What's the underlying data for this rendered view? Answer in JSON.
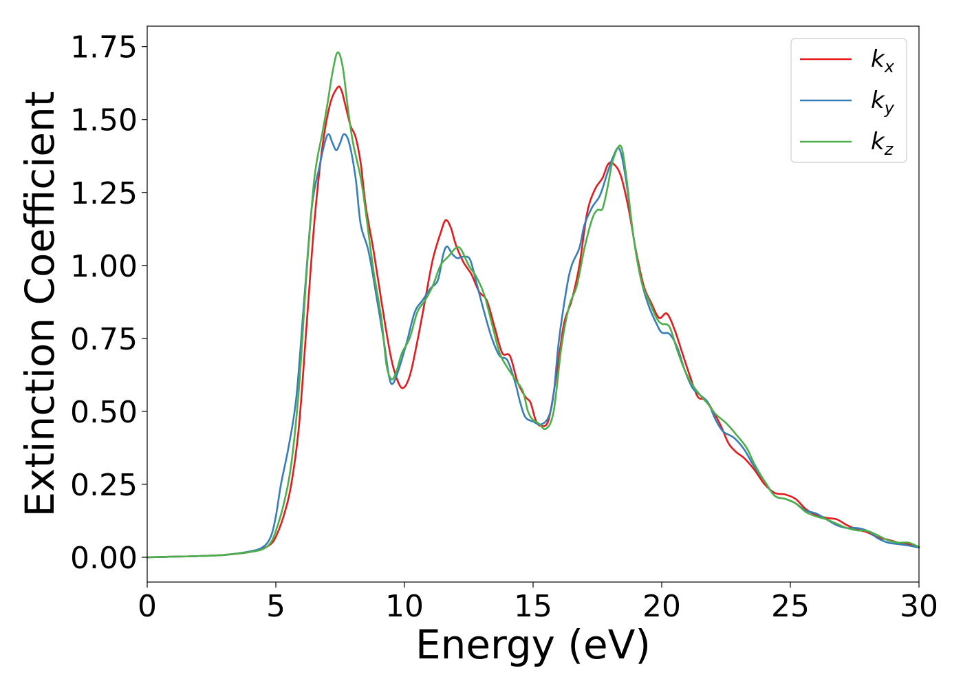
{
  "chart_data": {
    "type": "line",
    "title": "",
    "xlabel": "Energy (eV)",
    "ylabel": "Extinction Coefficient",
    "xlim": [
      0,
      30
    ],
    "ylim": [
      -0.085,
      1.82
    ],
    "xticks": [
      0,
      5,
      10,
      15,
      20,
      25,
      30
    ],
    "xtick_labels": [
      "0",
      "5",
      "10",
      "15",
      "20",
      "25",
      "30"
    ],
    "yticks": [
      0,
      0.25,
      0.5,
      0.75,
      1.0,
      1.25,
      1.5,
      1.75
    ],
    "ytick_labels": [
      "0.00",
      "0.25",
      "0.50",
      "0.75",
      "1.00",
      "1.25",
      "1.50",
      "1.75"
    ],
    "grid": false,
    "legend_position": "top-right",
    "series": [
      {
        "name": "k",
        "subscript": "x",
        "color": "#e41a1c",
        "points": [
          [
            0,
            0.0
          ],
          [
            1,
            0.002
          ],
          [
            2,
            0.004
          ],
          [
            3,
            0.008
          ],
          [
            4,
            0.018
          ],
          [
            4.5,
            0.03
          ],
          [
            4.8,
            0.045
          ],
          [
            5.0,
            0.07
          ],
          [
            5.3,
            0.14
          ],
          [
            5.6,
            0.25
          ],
          [
            5.9,
            0.45
          ],
          [
            6.2,
            0.8
          ],
          [
            6.5,
            1.15
          ],
          [
            6.8,
            1.4
          ],
          [
            7.1,
            1.55
          ],
          [
            7.4,
            1.61
          ],
          [
            7.55,
            1.6
          ],
          [
            7.7,
            1.55
          ],
          [
            7.9,
            1.48
          ],
          [
            8.1,
            1.44
          ],
          [
            8.3,
            1.35
          ],
          [
            8.5,
            1.2
          ],
          [
            8.8,
            1.05
          ],
          [
            9.1,
            0.88
          ],
          [
            9.4,
            0.72
          ],
          [
            9.6,
            0.64
          ],
          [
            9.9,
            0.58
          ],
          [
            10.2,
            0.62
          ],
          [
            10.5,
            0.74
          ],
          [
            10.8,
            0.88
          ],
          [
            11.1,
            1.02
          ],
          [
            11.4,
            1.11
          ],
          [
            11.6,
            1.155
          ],
          [
            11.8,
            1.13
          ],
          [
            12.0,
            1.07
          ],
          [
            12.3,
            1.01
          ],
          [
            12.6,
            0.97
          ],
          [
            12.9,
            0.91
          ],
          [
            13.2,
            0.88
          ],
          [
            13.5,
            0.79
          ],
          [
            13.8,
            0.7
          ],
          [
            14.1,
            0.69
          ],
          [
            14.4,
            0.6
          ],
          [
            14.7,
            0.55
          ],
          [
            14.9,
            0.53
          ],
          [
            15.1,
            0.47
          ],
          [
            15.3,
            0.45
          ],
          [
            15.6,
            0.47
          ],
          [
            15.9,
            0.62
          ],
          [
            16.2,
            0.8
          ],
          [
            16.5,
            0.88
          ],
          [
            16.8,
            1.0
          ],
          [
            17.1,
            1.18
          ],
          [
            17.4,
            1.26
          ],
          [
            17.7,
            1.3
          ],
          [
            17.9,
            1.345
          ],
          [
            18.1,
            1.35
          ],
          [
            18.4,
            1.31
          ],
          [
            18.7,
            1.2
          ],
          [
            19.0,
            1.05
          ],
          [
            19.3,
            0.93
          ],
          [
            19.6,
            0.87
          ],
          [
            19.9,
            0.82
          ],
          [
            20.2,
            0.835
          ],
          [
            20.5,
            0.78
          ],
          [
            20.8,
            0.7
          ],
          [
            21.1,
            0.62
          ],
          [
            21.4,
            0.55
          ],
          [
            21.7,
            0.54
          ],
          [
            22.0,
            0.5
          ],
          [
            22.3,
            0.45
          ],
          [
            22.6,
            0.39
          ],
          [
            22.9,
            0.36
          ],
          [
            23.2,
            0.34
          ],
          [
            23.6,
            0.3
          ],
          [
            24.0,
            0.25
          ],
          [
            24.4,
            0.22
          ],
          [
            24.8,
            0.215
          ],
          [
            25.2,
            0.2
          ],
          [
            25.6,
            0.165
          ],
          [
            26.0,
            0.145
          ],
          [
            26.4,
            0.135
          ],
          [
            26.8,
            0.13
          ],
          [
            27.2,
            0.11
          ],
          [
            27.6,
            0.095
          ],
          [
            28.0,
            0.085
          ],
          [
            28.4,
            0.068
          ],
          [
            28.8,
            0.06
          ],
          [
            29.2,
            0.05
          ],
          [
            29.6,
            0.045
          ],
          [
            30,
            0.035
          ]
        ]
      },
      {
        "name": "k",
        "subscript": "y",
        "color": "#377eb8",
        "points": [
          [
            0,
            0.0
          ],
          [
            1,
            0.002
          ],
          [
            2,
            0.004
          ],
          [
            3,
            0.008
          ],
          [
            4,
            0.02
          ],
          [
            4.5,
            0.035
          ],
          [
            4.8,
            0.07
          ],
          [
            5.0,
            0.14
          ],
          [
            5.2,
            0.25
          ],
          [
            5.5,
            0.38
          ],
          [
            5.8,
            0.55
          ],
          [
            6.1,
            0.88
          ],
          [
            6.4,
            1.2
          ],
          [
            6.7,
            1.34
          ],
          [
            6.9,
            1.42
          ],
          [
            7.05,
            1.45
          ],
          [
            7.2,
            1.42
          ],
          [
            7.35,
            1.395
          ],
          [
            7.5,
            1.42
          ],
          [
            7.65,
            1.45
          ],
          [
            7.85,
            1.42
          ],
          [
            8.1,
            1.3
          ],
          [
            8.3,
            1.14
          ],
          [
            8.6,
            1.05
          ],
          [
            8.9,
            0.9
          ],
          [
            9.2,
            0.74
          ],
          [
            9.4,
            0.62
          ],
          [
            9.55,
            0.595
          ],
          [
            9.8,
            0.65
          ],
          [
            10.1,
            0.74
          ],
          [
            10.4,
            0.84
          ],
          [
            10.7,
            0.88
          ],
          [
            11.0,
            0.92
          ],
          [
            11.3,
            0.95
          ],
          [
            11.5,
            1.035
          ],
          [
            11.65,
            1.065
          ],
          [
            11.85,
            1.04
          ],
          [
            12.05,
            1.025
          ],
          [
            12.3,
            1.03
          ],
          [
            12.55,
            1.02
          ],
          [
            12.8,
            0.94
          ],
          [
            13.1,
            0.84
          ],
          [
            13.4,
            0.75
          ],
          [
            13.7,
            0.69
          ],
          [
            14.0,
            0.675
          ],
          [
            14.3,
            0.6
          ],
          [
            14.5,
            0.53
          ],
          [
            14.7,
            0.48
          ],
          [
            15.0,
            0.465
          ],
          [
            15.3,
            0.455
          ],
          [
            15.6,
            0.48
          ],
          [
            15.8,
            0.56
          ],
          [
            16.0,
            0.74
          ],
          [
            16.3,
            0.92
          ],
          [
            16.5,
            1.0
          ],
          [
            16.8,
            1.06
          ],
          [
            17.0,
            1.14
          ],
          [
            17.3,
            1.2
          ],
          [
            17.6,
            1.24
          ],
          [
            17.9,
            1.32
          ],
          [
            18.1,
            1.37
          ],
          [
            18.35,
            1.4
          ],
          [
            18.6,
            1.3
          ],
          [
            18.9,
            1.1
          ],
          [
            19.2,
            0.95
          ],
          [
            19.5,
            0.86
          ],
          [
            19.8,
            0.8
          ],
          [
            20.0,
            0.77
          ],
          [
            20.3,
            0.765
          ],
          [
            20.6,
            0.72
          ],
          [
            20.9,
            0.64
          ],
          [
            21.2,
            0.58
          ],
          [
            21.5,
            0.555
          ],
          [
            21.8,
            0.53
          ],
          [
            22.1,
            0.47
          ],
          [
            22.4,
            0.43
          ],
          [
            22.8,
            0.41
          ],
          [
            23.2,
            0.37
          ],
          [
            23.6,
            0.31
          ],
          [
            24.0,
            0.26
          ],
          [
            24.4,
            0.21
          ],
          [
            24.8,
            0.2
          ],
          [
            25.2,
            0.185
          ],
          [
            25.6,
            0.16
          ],
          [
            26.0,
            0.15
          ],
          [
            26.4,
            0.13
          ],
          [
            26.8,
            0.11
          ],
          [
            27.2,
            0.1
          ],
          [
            27.6,
            0.1
          ],
          [
            28.0,
            0.09
          ],
          [
            28.4,
            0.065
          ],
          [
            28.8,
            0.05
          ],
          [
            29.2,
            0.045
          ],
          [
            29.6,
            0.04
          ],
          [
            30,
            0.033
          ]
        ]
      },
      {
        "name": "k",
        "subscript": "z",
        "color": "#4daf4a",
        "points": [
          [
            0,
            0.0
          ],
          [
            1,
            0.002
          ],
          [
            2,
            0.004
          ],
          [
            3,
            0.008
          ],
          [
            4,
            0.018
          ],
          [
            4.5,
            0.028
          ],
          [
            4.8,
            0.05
          ],
          [
            5.0,
            0.09
          ],
          [
            5.3,
            0.18
          ],
          [
            5.6,
            0.32
          ],
          [
            5.9,
            0.58
          ],
          [
            6.2,
            0.98
          ],
          [
            6.5,
            1.3
          ],
          [
            6.8,
            1.45
          ],
          [
            7.0,
            1.55
          ],
          [
            7.2,
            1.66
          ],
          [
            7.4,
            1.73
          ],
          [
            7.6,
            1.68
          ],
          [
            7.8,
            1.54
          ],
          [
            8.0,
            1.42
          ],
          [
            8.3,
            1.3
          ],
          [
            8.5,
            1.18
          ],
          [
            8.8,
            0.98
          ],
          [
            9.1,
            0.82
          ],
          [
            9.3,
            0.66
          ],
          [
            9.5,
            0.61
          ],
          [
            9.7,
            0.64
          ],
          [
            9.9,
            0.7
          ],
          [
            10.2,
            0.75
          ],
          [
            10.5,
            0.84
          ],
          [
            10.8,
            0.88
          ],
          [
            11.1,
            0.93
          ],
          [
            11.4,
            1.0
          ],
          [
            11.7,
            1.03
          ],
          [
            12.0,
            1.06
          ],
          [
            12.2,
            1.055
          ],
          [
            12.5,
            1.0
          ],
          [
            12.8,
            0.96
          ],
          [
            13.1,
            0.9
          ],
          [
            13.4,
            0.8
          ],
          [
            13.7,
            0.7
          ],
          [
            14.0,
            0.65
          ],
          [
            14.3,
            0.61
          ],
          [
            14.6,
            0.57
          ],
          [
            14.8,
            0.5
          ],
          [
            15.0,
            0.47
          ],
          [
            15.2,
            0.46
          ],
          [
            15.5,
            0.44
          ],
          [
            15.8,
            0.5
          ],
          [
            16.1,
            0.72
          ],
          [
            16.4,
            0.86
          ],
          [
            16.7,
            0.93
          ],
          [
            17.0,
            1.06
          ],
          [
            17.3,
            1.16
          ],
          [
            17.5,
            1.19
          ],
          [
            17.7,
            1.195
          ],
          [
            17.9,
            1.27
          ],
          [
            18.1,
            1.36
          ],
          [
            18.4,
            1.41
          ],
          [
            18.6,
            1.32
          ],
          [
            18.9,
            1.1
          ],
          [
            19.2,
            0.95
          ],
          [
            19.5,
            0.88
          ],
          [
            19.8,
            0.82
          ],
          [
            20.0,
            0.8
          ],
          [
            20.3,
            0.79
          ],
          [
            20.6,
            0.71
          ],
          [
            20.9,
            0.64
          ],
          [
            21.2,
            0.59
          ],
          [
            21.5,
            0.555
          ],
          [
            21.8,
            0.525
          ],
          [
            22.1,
            0.49
          ],
          [
            22.5,
            0.46
          ],
          [
            22.9,
            0.42
          ],
          [
            23.3,
            0.375
          ],
          [
            23.6,
            0.32
          ],
          [
            24.0,
            0.26
          ],
          [
            24.4,
            0.21
          ],
          [
            24.8,
            0.2
          ],
          [
            25.2,
            0.185
          ],
          [
            25.6,
            0.155
          ],
          [
            26.0,
            0.14
          ],
          [
            26.4,
            0.13
          ],
          [
            26.8,
            0.115
          ],
          [
            27.2,
            0.1
          ],
          [
            27.6,
            0.092
          ],
          [
            28.0,
            0.09
          ],
          [
            28.4,
            0.075
          ],
          [
            28.8,
            0.058
          ],
          [
            29.2,
            0.05
          ],
          [
            29.6,
            0.05
          ],
          [
            30,
            0.035
          ]
        ]
      }
    ]
  }
}
